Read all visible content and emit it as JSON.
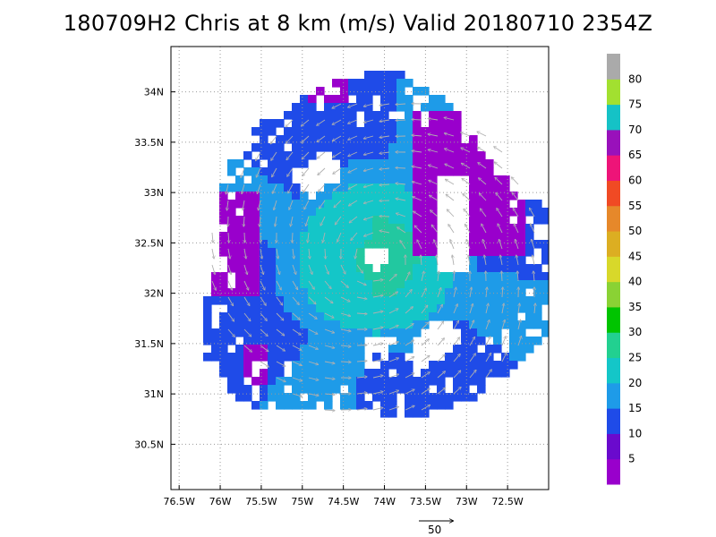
{
  "chart_data": {
    "type": "heatmap",
    "title": "180709H2 Chris at 8 km (m/s) Valid 20180710 2354Z",
    "x_ticks": [
      "76.5W",
      "76W",
      "75.5W",
      "75W",
      "74.5W",
      "74W",
      "73.5W",
      "73W",
      "72.5W"
    ],
    "y_ticks": [
      "30.5N",
      "31N",
      "31.5N",
      "32N",
      "32.5N",
      "33N",
      "33.5N",
      "34N"
    ],
    "x_range": [
      -76.6,
      -72.0
    ],
    "y_range": [
      30.05,
      34.45
    ],
    "grid": true,
    "colorbar": {
      "labels": [
        "5",
        "10",
        "15",
        "20",
        "25",
        "30",
        "35",
        "40",
        "45",
        "50",
        "55",
        "60",
        "65",
        "70",
        "75",
        "80"
      ],
      "colors": [
        "#9900cc",
        "#6a0acd",
        "#1f4be8",
        "#1e9be8",
        "#14c6c8",
        "#22d090",
        "#00c400",
        "#8ad234",
        "#d8d82a",
        "#dcae22",
        "#e6882a",
        "#f04a24",
        "#ee1478",
        "#9911bb",
        "#15c2c6",
        "#a2e030",
        "#aaaaaa"
      ]
    },
    "storm_center": {
      "lon": -74.1,
      "lat": 32.35
    },
    "max_wind_ms": 28,
    "vector_reference": {
      "label": "50",
      "units": "m/s"
    }
  }
}
